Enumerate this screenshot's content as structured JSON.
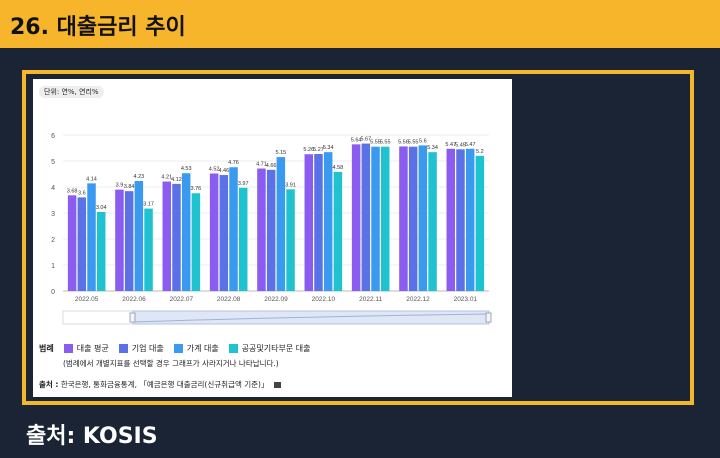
{
  "slide": {
    "title": "26. 대출금리 추이",
    "bottom_source": "출처: KOSIS"
  },
  "panel": {
    "unit": "단위: 연%, 연리%",
    "legend_title": "범례",
    "legend_note": "(범례에서 개별지표를 선택할 경우 그래프가 사라지거나 나타납니다.)",
    "source_label": "출처 :",
    "source_text": "한국은행, 통화금융통계, 「예금은행 대출금리(신규취급액 기준)」"
  },
  "chart_data": {
    "type": "bar",
    "title": "",
    "xlabel": "",
    "ylabel": "",
    "ylim": [
      0,
      6
    ],
    "yticks": [
      0,
      1,
      2,
      3,
      4,
      5,
      6
    ],
    "grid": true,
    "legend_position": "bottom",
    "categories": [
      "2022.05",
      "2022.06",
      "2022.07",
      "2022.08",
      "2022.09",
      "2022.10",
      "2022.11",
      "2022.12",
      "2023.01"
    ],
    "series": [
      {
        "name": "대출 평균",
        "color": "#8a5cf0",
        "values": [
          3.68,
          3.9,
          4.21,
          4.52,
          4.71,
          5.26,
          5.64,
          5.56,
          5.47
        ]
      },
      {
        "name": "기업 대출",
        "color": "#5b72e6",
        "values": [
          3.6,
          3.84,
          4.12,
          4.46,
          4.66,
          5.27,
          5.67,
          5.55,
          5.45
        ]
      },
      {
        "name": "가계 대출",
        "color": "#3a9af0",
        "values": [
          4.14,
          4.23,
          4.53,
          4.76,
          5.15,
          5.34,
          5.55,
          5.6,
          5.47
        ]
      },
      {
        "name": "공공및기타부문 대출",
        "color": "#1fc3cf",
        "values": [
          3.04,
          3.17,
          3.76,
          3.97,
          3.91,
          4.58,
          5.55,
          5.34,
          5.2
        ]
      }
    ],
    "data_labels": [
      [
        "3.68",
        "3.6",
        "4.14",
        "3.04"
      ],
      [
        "3.9",
        "3.84",
        "4.23",
        "3.17"
      ],
      [
        "4.21",
        "4.12",
        "4.53",
        "3.76"
      ],
      [
        "4.52",
        "4.46",
        "4.76",
        "3.97"
      ],
      [
        "4.71",
        "4.66",
        "5.15",
        "3.91"
      ],
      [
        "5.26",
        "5.27",
        "5.34",
        "4.58"
      ],
      [
        "5.64",
        "5.67",
        "5.55",
        "5.55"
      ],
      [
        "5.56",
        "5.55",
        "5.6",
        "5.34"
      ],
      [
        "5.47",
        "5.45",
        "5.47",
        "5.2"
      ]
    ]
  }
}
